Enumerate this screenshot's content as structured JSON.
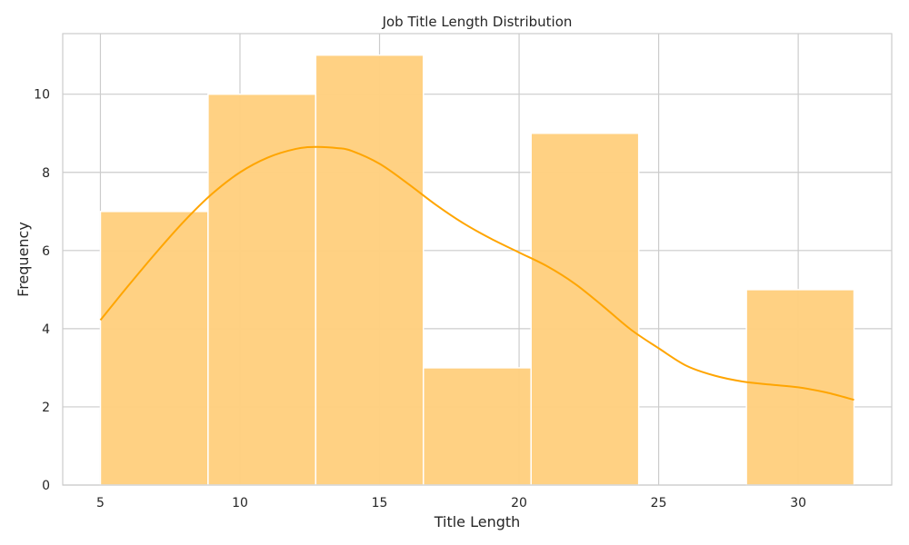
{
  "chart_data": {
    "type": "bar",
    "title": "Job Title Length Distribution",
    "xlabel": "Title Length",
    "ylabel": "Frequency",
    "xlim": [
      3.65,
      33.35
    ],
    "ylim": [
      0,
      11.55
    ],
    "xticks": [
      5,
      10,
      15,
      20,
      25,
      30
    ],
    "yticks": [
      0,
      2,
      4,
      6,
      8,
      10
    ],
    "grid": true,
    "bins": [
      {
        "start": 5.0,
        "end": 8.857,
        "count": 7
      },
      {
        "start": 8.857,
        "end": 12.714,
        "count": 10
      },
      {
        "start": 12.714,
        "end": 16.571,
        "count": 11
      },
      {
        "start": 16.571,
        "end": 20.429,
        "count": 3
      },
      {
        "start": 20.429,
        "end": 24.286,
        "count": 9
      },
      {
        "start": 24.286,
        "end": 28.143,
        "count": 0
      },
      {
        "start": 28.143,
        "end": 32.0,
        "count": 5
      }
    ],
    "kde": {
      "x": [
        5,
        6,
        7,
        8,
        9,
        10,
        11,
        12,
        12.7,
        13.5,
        14,
        15,
        16,
        17,
        18,
        19,
        20,
        21,
        22,
        23,
        24,
        25,
        26,
        27,
        28,
        29,
        30,
        31,
        32
      ],
      "y": [
        4.22,
        5.1,
        5.95,
        6.75,
        7.45,
        8.0,
        8.38,
        8.6,
        8.65,
        8.62,
        8.55,
        8.22,
        7.72,
        7.18,
        6.7,
        6.3,
        5.95,
        5.6,
        5.15,
        4.58,
        3.98,
        3.5,
        3.05,
        2.8,
        2.65,
        2.57,
        2.5,
        2.37,
        2.18
      ]
    },
    "colors": {
      "bar_fill": "#ffcf7f",
      "bar_edge": "#ffffff",
      "kde_line": "#ffa500",
      "grid": "#cccccc",
      "spine": "#cccccc",
      "text": "#262626"
    }
  }
}
